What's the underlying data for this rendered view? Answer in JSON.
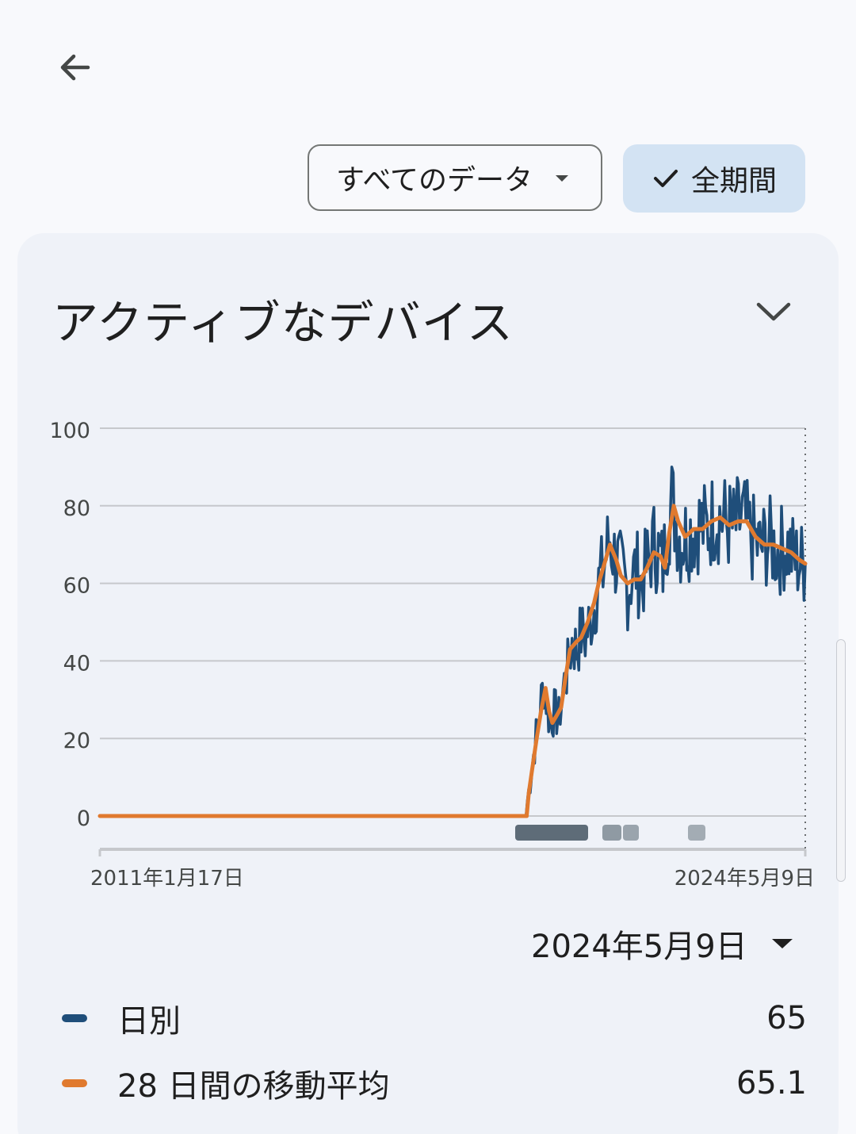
{
  "filter": {
    "label": "すべてのデータ"
  },
  "range_chip": {
    "label": "全期間"
  },
  "card": {
    "title": "アクティブなデバイス"
  },
  "chart_data": {
    "type": "line",
    "x_start_label": "2011年1月17日",
    "x_end_label": "2024年5月9日",
    "yticks": [
      "100",
      "80",
      "60",
      "40",
      "20",
      "0"
    ],
    "ylim": [
      0,
      100
    ],
    "grid": true,
    "series": [
      {
        "name": "日別",
        "color": "#1f4e7a",
        "points": [
          [
            "2011-01-17",
            0
          ],
          [
            "2019-02-01",
            0
          ],
          [
            "2019-02-10",
            4
          ],
          [
            "2019-03-01",
            9
          ],
          [
            "2019-04-01",
            18
          ],
          [
            "2019-05-01",
            26
          ],
          [
            "2019-06-01",
            34
          ],
          [
            "2019-06-20",
            30
          ],
          [
            "2019-07-15",
            24
          ],
          [
            "2019-08-15",
            27
          ],
          [
            "2019-09-15",
            25
          ],
          [
            "2019-10-15",
            33
          ],
          [
            "2019-11-15",
            38
          ],
          [
            "2019-12-15",
            45
          ],
          [
            "2020-01-15",
            43
          ],
          [
            "2020-02-15",
            47
          ],
          [
            "2020-03-15",
            46
          ],
          [
            "2020-04-15",
            50
          ],
          [
            "2020-05-15",
            54
          ],
          [
            "2020-06-15",
            60
          ],
          [
            "2020-07-15",
            63
          ],
          [
            "2020-08-15",
            69
          ],
          [
            "2020-09-01",
            72
          ],
          [
            "2020-10-01",
            67
          ],
          [
            "2020-11-01",
            64
          ],
          [
            "2020-12-01",
            61
          ],
          [
            "2021-01-01",
            58
          ],
          [
            "2021-02-01",
            62
          ],
          [
            "2021-03-01",
            64
          ],
          [
            "2021-04-01",
            60
          ],
          [
            "2021-05-01",
            63
          ],
          [
            "2021-06-01",
            67
          ],
          [
            "2021-07-01",
            70
          ],
          [
            "2021-08-01",
            68
          ],
          [
            "2021-09-01",
            64
          ],
          [
            "2021-10-01",
            74
          ],
          [
            "2021-11-01",
            81
          ],
          [
            "2021-12-01",
            76
          ],
          [
            "2022-01-01",
            71
          ],
          [
            "2022-03-01",
            73
          ],
          [
            "2022-05-01",
            75
          ],
          [
            "2022-07-01",
            74
          ],
          [
            "2022-09-01",
            78
          ],
          [
            "2022-11-01",
            76
          ],
          [
            "2023-01-01",
            74
          ],
          [
            "2023-03-01",
            77
          ],
          [
            "2023-05-01",
            72
          ],
          [
            "2023-07-01",
            69
          ],
          [
            "2023-09-01",
            71
          ],
          [
            "2023-11-01",
            68
          ],
          [
            "2024-01-01",
            70
          ],
          [
            "2024-03-01",
            66
          ],
          [
            "2024-05-09",
            65
          ]
        ]
      },
      {
        "name": "28 日間の移動平均",
        "color": "#e07a2f",
        "points": [
          [
            "2011-01-17",
            0
          ],
          [
            "2019-02-05",
            0
          ],
          [
            "2019-02-20",
            6
          ],
          [
            "2019-03-15",
            12
          ],
          [
            "2019-04-15",
            20
          ],
          [
            "2019-05-15",
            27
          ],
          [
            "2019-06-15",
            33
          ],
          [
            "2019-07-10",
            27
          ],
          [
            "2019-08-01",
            24
          ],
          [
            "2019-09-01",
            26
          ],
          [
            "2019-10-01",
            28
          ],
          [
            "2019-11-01",
            36
          ],
          [
            "2019-12-01",
            43
          ],
          [
            "2020-01-15",
            45
          ],
          [
            "2020-02-15",
            46
          ],
          [
            "2020-04-01",
            50
          ],
          [
            "2020-05-15",
            55
          ],
          [
            "2020-06-15",
            60
          ],
          [
            "2020-08-01",
            66
          ],
          [
            "2020-09-01",
            70
          ],
          [
            "2020-10-15",
            66
          ],
          [
            "2020-11-15",
            62
          ],
          [
            "2021-01-01",
            60
          ],
          [
            "2021-02-15",
            61
          ],
          [
            "2021-04-01",
            61
          ],
          [
            "2021-05-15",
            64
          ],
          [
            "2021-07-01",
            68
          ],
          [
            "2021-08-15",
            67
          ],
          [
            "2021-09-15",
            64
          ],
          [
            "2021-10-15",
            73
          ],
          [
            "2021-11-15",
            80
          ],
          [
            "2021-12-15",
            76
          ],
          [
            "2022-02-01",
            72
          ],
          [
            "2022-04-01",
            74
          ],
          [
            "2022-06-01",
            74
          ],
          [
            "2022-08-01",
            76
          ],
          [
            "2022-10-01",
            77
          ],
          [
            "2022-12-01",
            75
          ],
          [
            "2023-02-01",
            76
          ],
          [
            "2023-04-01",
            76
          ],
          [
            "2023-06-01",
            72
          ],
          [
            "2023-08-01",
            70
          ],
          [
            "2023-10-01",
            70
          ],
          [
            "2023-12-01",
            69
          ],
          [
            "2024-02-01",
            68
          ],
          [
            "2024-04-01",
            66
          ],
          [
            "2024-05-09",
            65.1
          ]
        ]
      }
    ]
  },
  "selection": {
    "date": "2024年5月9日"
  },
  "legend": [
    {
      "label": "日別",
      "value": "65",
      "color": "#1f4e7a"
    },
    {
      "label": "28 日間の移動平均",
      "value": "65.1",
      "color": "#e07a2f"
    }
  ]
}
